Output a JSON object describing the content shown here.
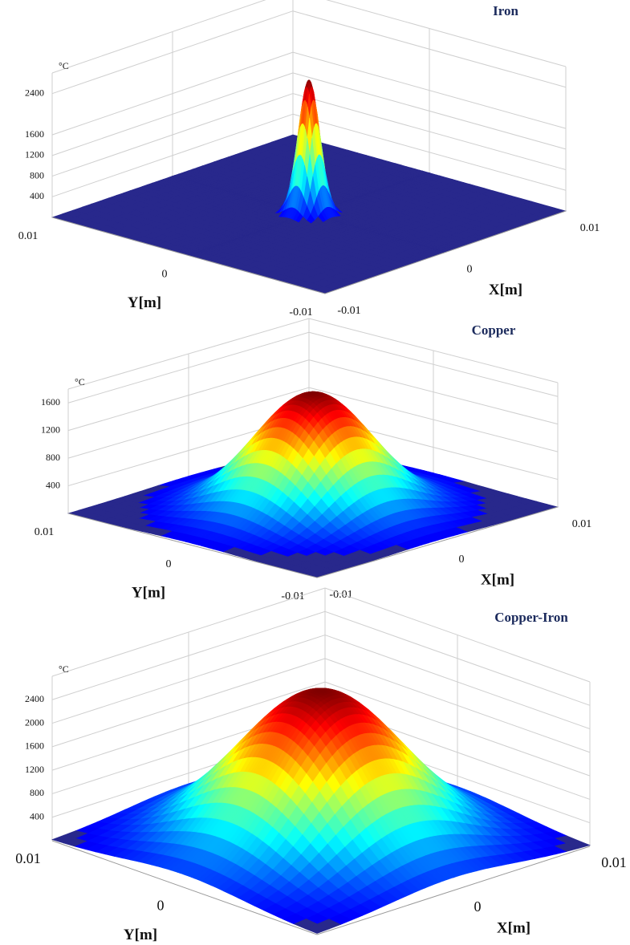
{
  "chart_data": [
    {
      "type": "surface",
      "title": "Iron",
      "zlabel": "°C",
      "xlabel": "X[m]",
      "ylabel": "Y[m]",
      "xlim": [
        -0.01,
        0.01
      ],
      "ylim": [
        -0.01,
        0.01
      ],
      "xticks": [
        -0.01,
        0,
        0.01
      ],
      "yticks": [
        -0.01,
        0,
        0.01
      ],
      "zlim": [
        0,
        2800
      ],
      "zticks": [
        400,
        800,
        1200,
        1600,
        2400
      ],
      "z_peak": 2600,
      "spread": 0.0006,
      "colormap": "jet",
      "grid": true
    },
    {
      "type": "surface",
      "title": "Copper",
      "zlabel": "°C",
      "xlabel": "X[m]",
      "ylabel": "Y[m]",
      "xlim": [
        -0.01,
        0.01
      ],
      "ylim": [
        -0.01,
        0.01
      ],
      "xticks": [
        -0.01,
        0,
        0.01
      ],
      "yticks": [
        -0.01,
        0,
        0.01
      ],
      "zlim": [
        0,
        1800
      ],
      "zticks": [
        400,
        800,
        1200,
        1600
      ],
      "z_peak": 1700,
      "spread": 0.0035,
      "colormap": "jet",
      "grid": true
    },
    {
      "type": "surface",
      "title": "Copper-Iron",
      "zlabel": "°C",
      "xlabel": "X[m]",
      "ylabel": "Y[m]",
      "xlim": [
        -0.01,
        0.01
      ],
      "ylim": [
        -0.01,
        0.01
      ],
      "xticks": [
        -0.01,
        0,
        0.01
      ],
      "yticks": [
        -0.01,
        0,
        0.01
      ],
      "zlim": [
        0,
        2800
      ],
      "zticks": [
        400,
        800,
        1200,
        1600,
        2000,
        2400
      ],
      "z_peak": 2600,
      "spread": 0.0045,
      "colormap": "jet",
      "grid": true
    }
  ]
}
